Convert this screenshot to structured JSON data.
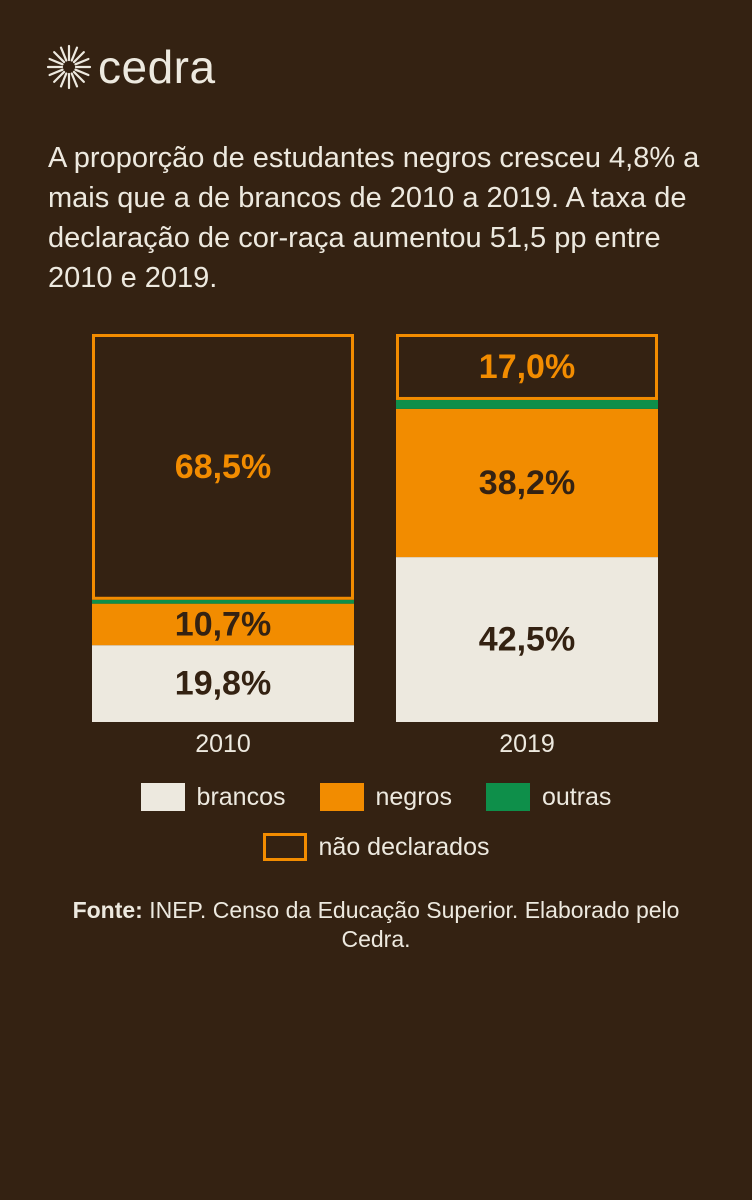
{
  "brand": {
    "name": "cedra"
  },
  "headline": "A proporção de estudantes negros cresceu 4,8% a mais que a de brancos de 2010 a 2019. A taxa de declaração de cor-raça aumentou 51,5 pp entre 2010 e 2019.",
  "colors": {
    "background": "#342212",
    "brancos": "#ede9df",
    "negros": "#f28c00",
    "outras": "#0e8f4a",
    "nao_declarados_border": "#f28c00",
    "text_light": "#ede9df",
    "text_dark": "#342212"
  },
  "chart_data": {
    "type": "bar",
    "stacked": true,
    "categories": [
      "2010",
      "2019"
    ],
    "series": [
      {
        "name": "brancos",
        "values": [
          19.8,
          42.5
        ],
        "labels": [
          "19,8%",
          "42,5%"
        ]
      },
      {
        "name": "negros",
        "values": [
          10.7,
          38.2
        ],
        "labels": [
          "10,7%",
          "38,2%"
        ]
      },
      {
        "name": "outras",
        "values": [
          1.0,
          2.3
        ],
        "labels": [
          null,
          null
        ]
      },
      {
        "name": "não declarados",
        "values": [
          68.5,
          17.0
        ],
        "labels": [
          "68,5%",
          "17,0%"
        ]
      }
    ],
    "ylim": [
      0,
      100
    ],
    "legend_position": "bottom"
  },
  "legend": [
    {
      "key": "brancos",
      "label": "brancos"
    },
    {
      "key": "negros",
      "label": "negros"
    },
    {
      "key": "outras",
      "label": "outras"
    },
    {
      "key": "nao_declarados",
      "label": "não declarados"
    }
  ],
  "source": {
    "prefix": "Fonte:",
    "text": " INEP. Censo da Educação Superior. Elaborado pelo Cedra."
  }
}
